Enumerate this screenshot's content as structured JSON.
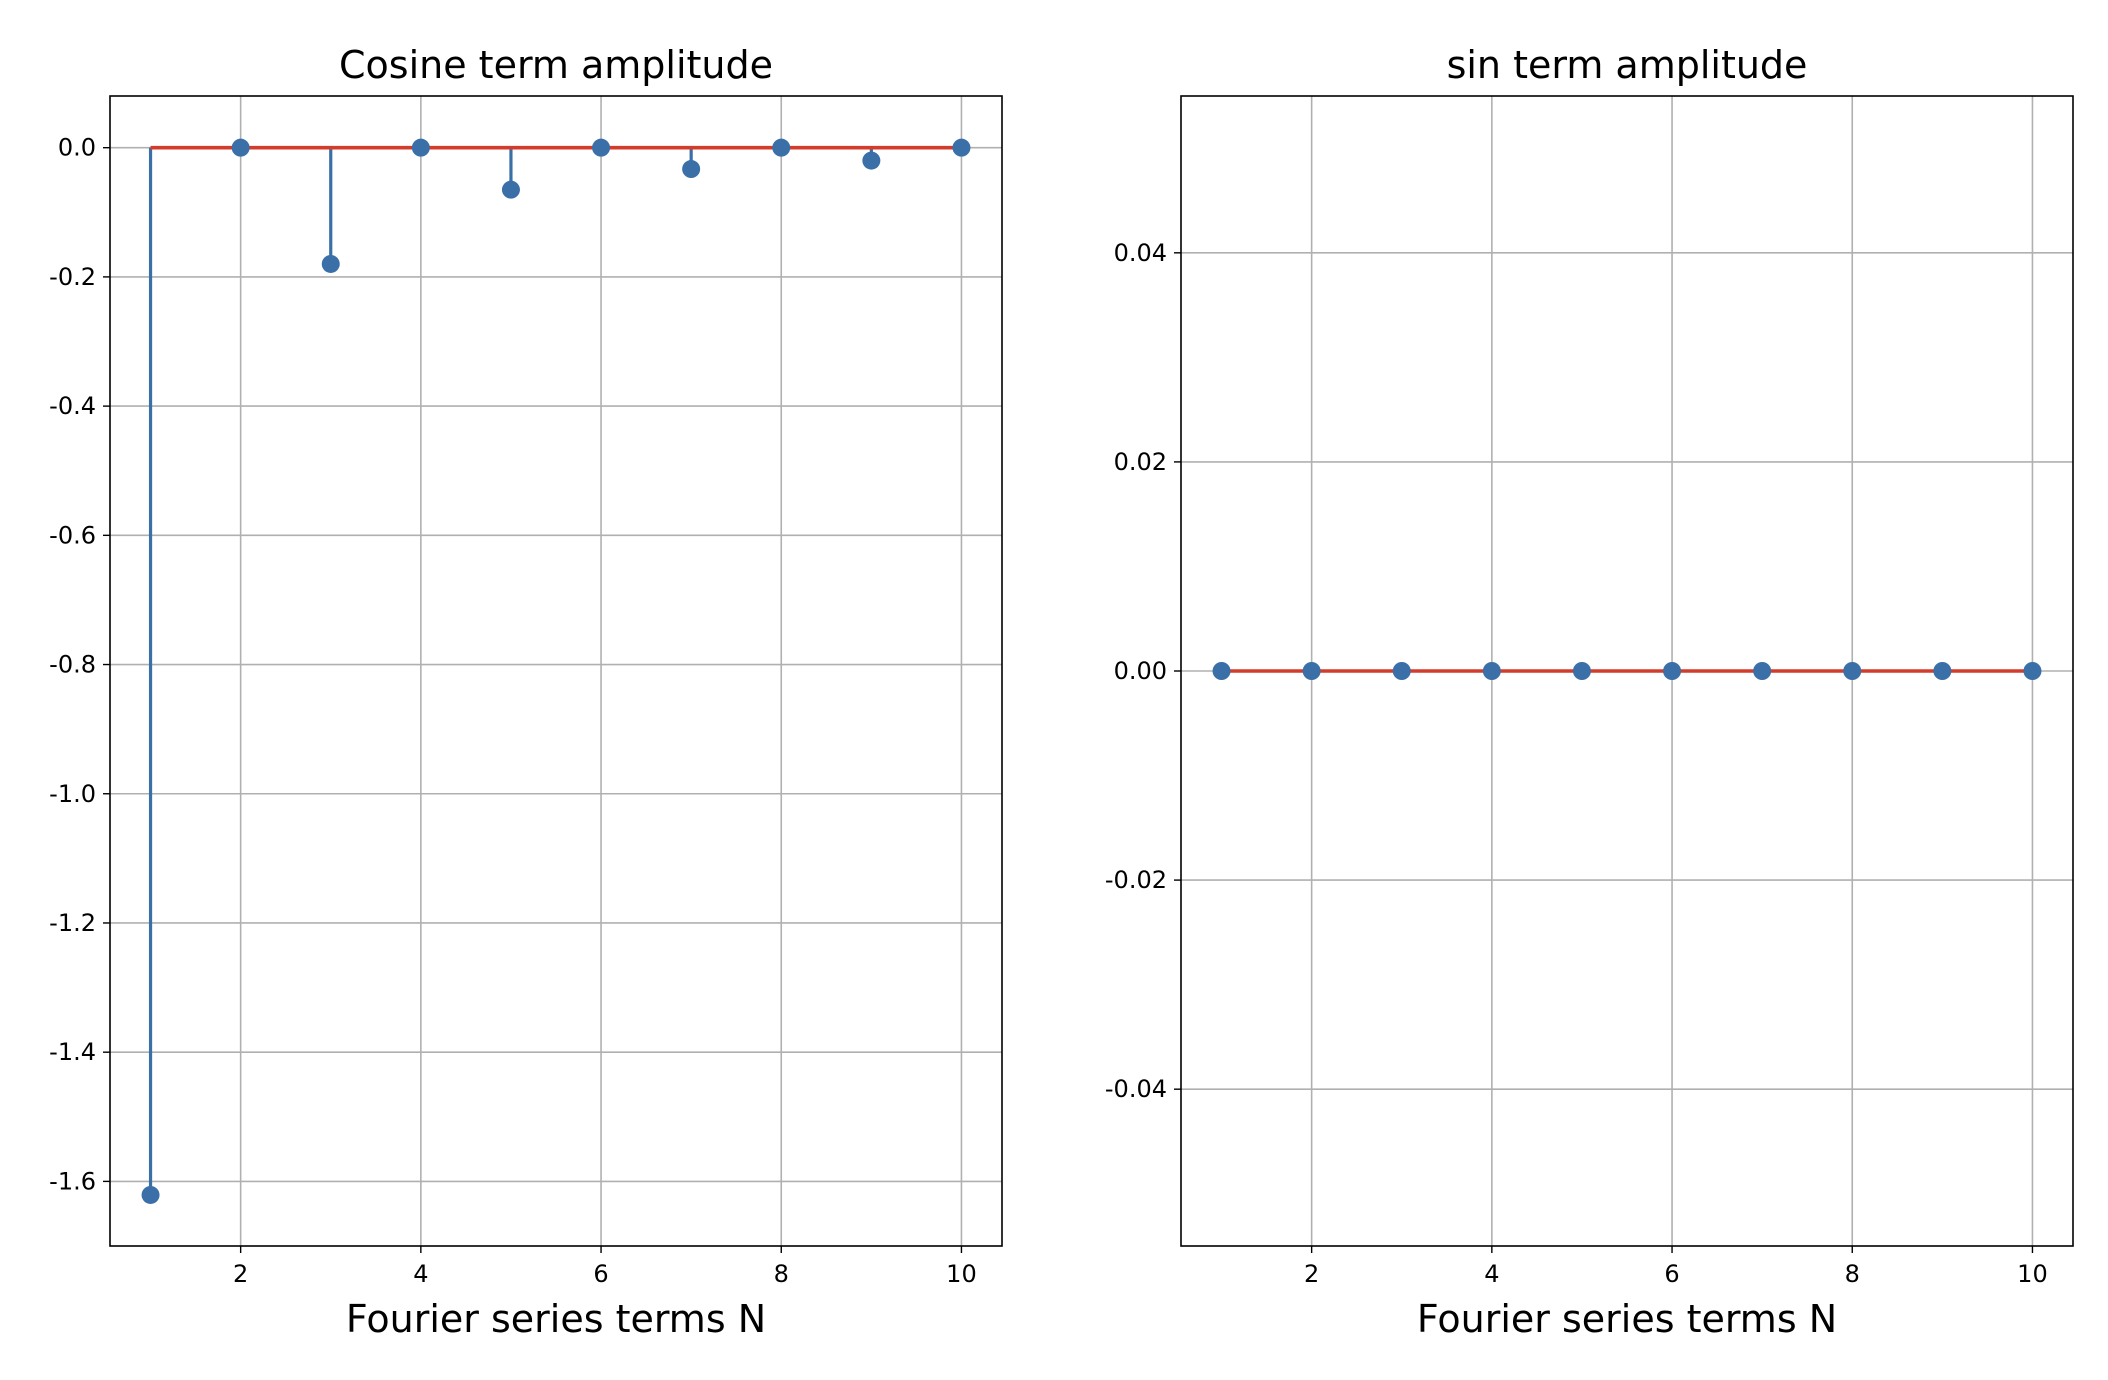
{
  "chart_data": [
    {
      "type": "stem",
      "title": "Cosine term amplitude",
      "xlabel": "Fourier series terms N",
      "ylabel": "",
      "x": [
        1,
        2,
        3,
        4,
        5,
        6,
        7,
        8,
        9,
        10
      ],
      "values": [
        -1.621,
        0.0,
        -0.18,
        0.0,
        -0.065,
        0.0,
        -0.033,
        0.0,
        -0.02,
        0.0
      ],
      "baseline": 0.0,
      "xlim": [
        0.55,
        10.45
      ],
      "ylim": [
        -1.7,
        0.08
      ],
      "xticks": [
        2,
        4,
        6,
        8,
        10
      ],
      "xtick_labels": [
        "2",
        "4",
        "6",
        "8",
        "10"
      ],
      "yticks": [
        0.0,
        -0.2,
        -0.4,
        -0.6,
        -0.8,
        -1.0,
        -1.2,
        -1.4,
        -1.6
      ],
      "ytick_labels": [
        "0.0",
        "-0.2",
        "-0.4",
        "-0.6",
        "-0.8",
        "-1.0",
        "-1.2",
        "-1.4",
        "-1.6"
      ],
      "grid": true,
      "stem_color": "#3a6fa8",
      "baseline_color": "#d33b2a"
    },
    {
      "type": "stem",
      "title": "sin term amplitude",
      "xlabel": "Fourier series terms N",
      "ylabel": "",
      "x": [
        1,
        2,
        3,
        4,
        5,
        6,
        7,
        8,
        9,
        10
      ],
      "values": [
        0,
        0,
        0,
        0,
        0,
        0,
        0,
        0,
        0,
        0
      ],
      "baseline": 0.0,
      "xlim": [
        0.55,
        10.45
      ],
      "ylim": [
        -0.055,
        0.055
      ],
      "xticks": [
        2,
        4,
        6,
        8,
        10
      ],
      "xtick_labels": [
        "2",
        "4",
        "6",
        "8",
        "10"
      ],
      "yticks": [
        0.04,
        0.02,
        0.0,
        -0.02,
        -0.04
      ],
      "ytick_labels": [
        "0.04",
        "0.02",
        "0.00",
        "-0.02",
        "-0.04"
      ],
      "grid": true,
      "stem_color": "#3a6fa8",
      "baseline_color": "#d33b2a"
    }
  ]
}
